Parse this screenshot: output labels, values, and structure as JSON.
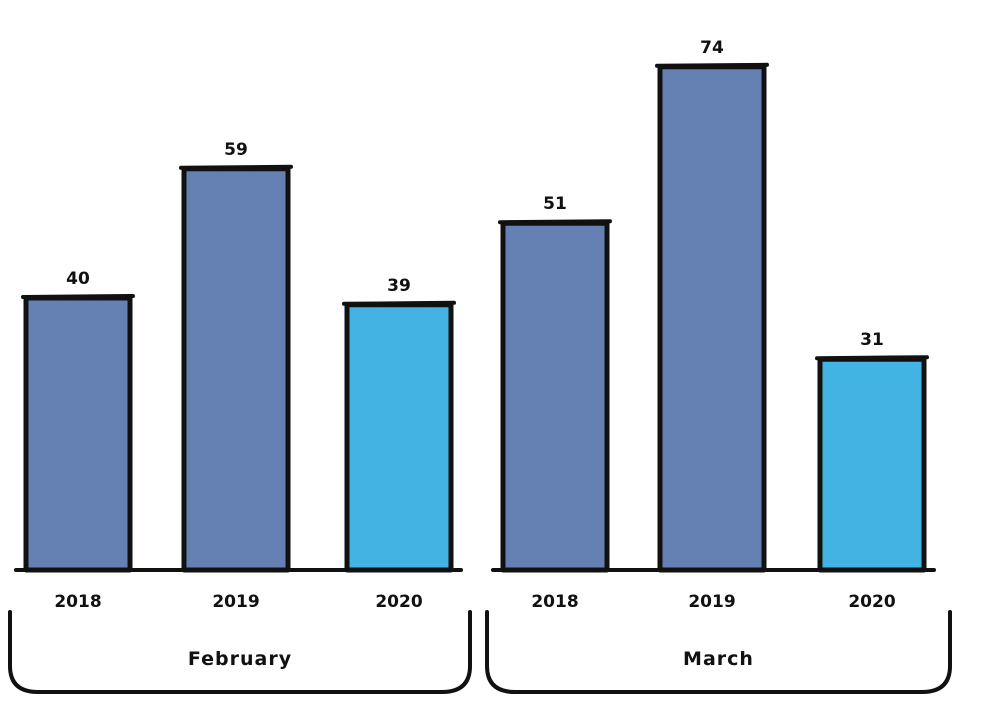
{
  "chart_data": {
    "type": "bar",
    "groups": [
      {
        "label": "February",
        "categories": [
          "2018",
          "2019",
          "2020"
        ],
        "values": [
          40,
          59,
          39
        ]
      },
      {
        "label": "March",
        "categories": [
          "2018",
          "2019",
          "2020"
        ],
        "values": [
          51,
          74,
          31
        ]
      }
    ],
    "title": "",
    "xlabel": "",
    "ylabel": "",
    "ylim": [
      0,
      80
    ],
    "data_labels": true,
    "grid": false,
    "legend": "none",
    "colors": {
      "2018": "#6581b4",
      "2019": "#6581b4",
      "2020": "#42b3e3",
      "outline": "#111111"
    }
  }
}
